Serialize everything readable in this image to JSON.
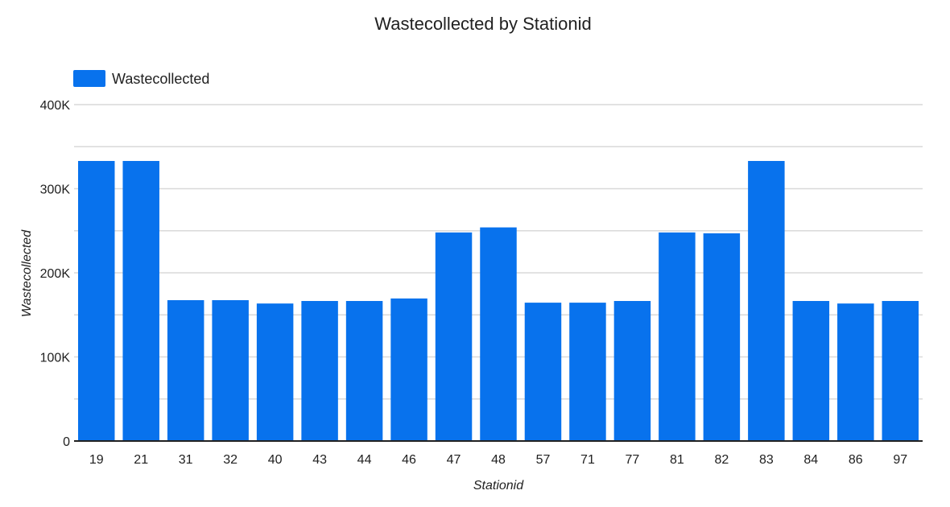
{
  "chart_data": {
    "type": "bar",
    "title": "Wastecollected by Stationid",
    "xlabel": "Stationid",
    "ylabel": "Wastecollected",
    "categories": [
      "19",
      "21",
      "31",
      "32",
      "40",
      "43",
      "44",
      "46",
      "47",
      "48",
      "57",
      "71",
      "77",
      "81",
      "82",
      "83",
      "84",
      "86",
      "97"
    ],
    "series": [
      {
        "name": "Wastecollected",
        "color": "#0872ed",
        "values": [
          333000,
          333000,
          167500,
          167500,
          163500,
          166500,
          166500,
          169500,
          248000,
          254000,
          164500,
          164500,
          166500,
          248000,
          247000,
          333000,
          166500,
          163500,
          166500
        ]
      }
    ],
    "ylim": [
      0,
      400000
    ],
    "yticks": [
      {
        "value": 0,
        "label": "0"
      },
      {
        "value": 100000,
        "label": "100K"
      },
      {
        "value": 200000,
        "label": "200K"
      },
      {
        "value": 300000,
        "label": "300K"
      },
      {
        "value": 400000,
        "label": "400K"
      }
    ],
    "minor_gridlines": [
      50000,
      150000,
      250000,
      350000
    ],
    "grid": true,
    "legend_position": "top-left"
  }
}
